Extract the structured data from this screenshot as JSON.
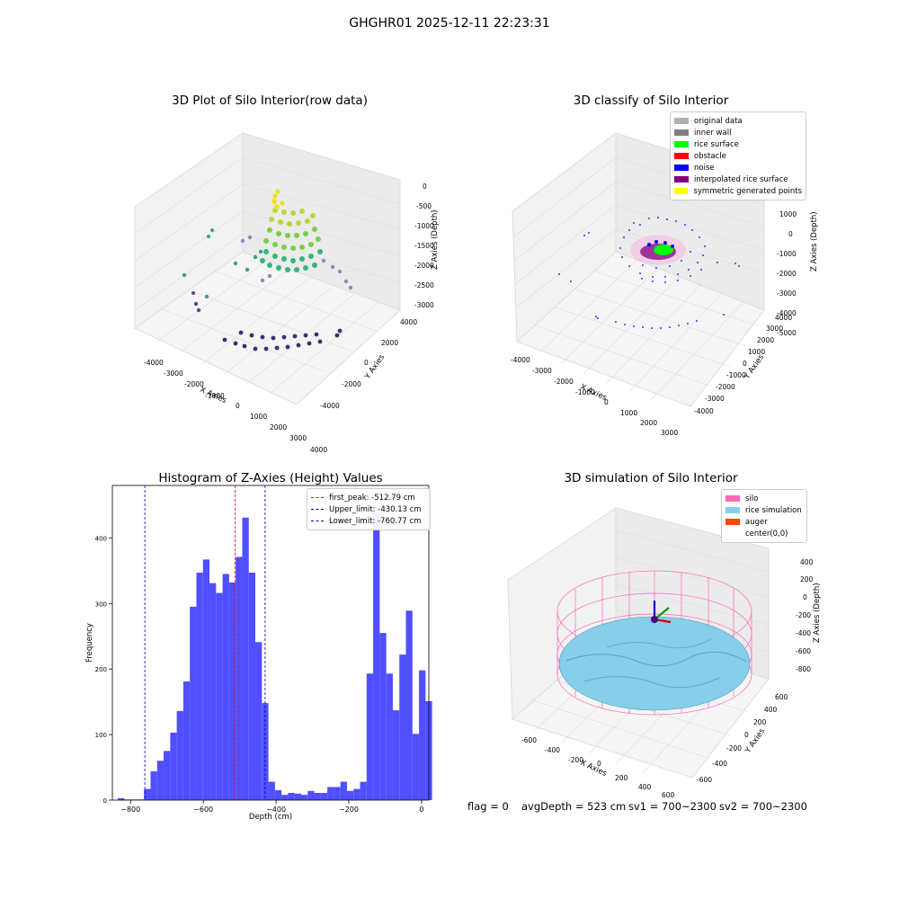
{
  "suptitle": "GHGHR01 2025-12-11 22:23:31",
  "panels": {
    "raw": {
      "title": "3D Plot of Silo Interior(row data)",
      "xlabel": "X Axies",
      "ylabel": "Y Axies",
      "zlabel": "Z Axies (Depth)",
      "xticks": [
        "-4000",
        "-3000",
        "-2000",
        "-1000",
        "0",
        "1000",
        "2000",
        "3000",
        "4000"
      ],
      "yticks": [
        "-4000",
        "-2000",
        "0",
        "2000",
        "4000"
      ],
      "zticks": [
        "0",
        "-500",
        "-1000",
        "-1500",
        "-2000",
        "-2500",
        "-3000"
      ]
    },
    "classify": {
      "title": "3D classify of Silo Interior",
      "xlabel": "X Axies",
      "ylabel": "Y Axies",
      "zlabel": "Z Axies (Depth)",
      "xticks": [
        "-4000",
        "-3000",
        "-2000",
        "-1000",
        "0",
        "1000",
        "2000",
        "3000"
      ],
      "yticks": [
        "-4000",
        "-3000",
        "-2000",
        "-1000",
        "0",
        "1000",
        "2000",
        "3000",
        "4000"
      ],
      "zticks": [
        "2000",
        "1000",
        "0",
        "-1000",
        "-2000",
        "-3000",
        "-4000",
        "-5000"
      ],
      "legend": [
        {
          "label": "original data",
          "color": "#b0b0b0"
        },
        {
          "label": "inner wall",
          "color": "#808080"
        },
        {
          "label": "rice surface",
          "color": "#00ff00"
        },
        {
          "label": "obstacle",
          "color": "#ff0000"
        },
        {
          "label": "noise",
          "color": "#0000ff"
        },
        {
          "label": "interpolated rice surface",
          "color": "#800080"
        },
        {
          "label": "symmetric generated points",
          "color": "#ffff00"
        }
      ]
    },
    "simulation": {
      "title": "3D simulation of Silo Interior",
      "xlabel": "X Axies",
      "ylabel": "Y Axies",
      "zlabel": "Z Axies (Depth)",
      "xticks": [
        "-600",
        "-400",
        "-200",
        "0",
        "200",
        "400",
        "600"
      ],
      "yticks": [
        "-600",
        "-400",
        "-200",
        "0",
        "200",
        "400",
        "600"
      ],
      "zticks": [
        "400",
        "200",
        "0",
        "-200",
        "-400",
        "-600",
        "-800"
      ],
      "legend": [
        {
          "label": "silo",
          "color": "#ff69b4"
        },
        {
          "label": "rice simulation",
          "color": "#87ceeb"
        },
        {
          "label": "auger",
          "color": "#ff4500"
        },
        {
          "label": "center(0,0)",
          "color": "#ffffff"
        }
      ]
    }
  },
  "footer": {
    "flag": "flag = 0",
    "avg": "avgDepth = 523 cm",
    "sv1": "sv1 = 700~2300",
    "sv2": "sv2 = 700~2300"
  },
  "colors": {
    "bars": "#4f4fff",
    "first_peak": "#ff0000",
    "limits": "#0000aa"
  },
  "chart_data": {
    "type": "bar",
    "title": "Histogram of Z-Axies (Height) Values",
    "xlabel": "Depth (cm)",
    "ylabel": "Frequency",
    "xlim": [
      -850,
      20
    ],
    "ylim": [
      0,
      480
    ],
    "xticks": [
      -800,
      -600,
      -400,
      -200,
      0
    ],
    "yticks": [
      0,
      100,
      200,
      300,
      400
    ],
    "bin_width": 18,
    "bins": [
      {
        "x": -826,
        "v": 3
      },
      {
        "x": -808,
        "v": 1
      },
      {
        "x": -790,
        "v": 1
      },
      {
        "x": -772,
        "v": 1
      },
      {
        "x": -754,
        "v": 17
      },
      {
        "x": -736,
        "v": 44
      },
      {
        "x": -718,
        "v": 60
      },
      {
        "x": -700,
        "v": 75
      },
      {
        "x": -682,
        "v": 103
      },
      {
        "x": -664,
        "v": 136
      },
      {
        "x": -646,
        "v": 181
      },
      {
        "x": -628,
        "v": 295
      },
      {
        "x": -610,
        "v": 347
      },
      {
        "x": -592,
        "v": 367
      },
      {
        "x": -574,
        "v": 331
      },
      {
        "x": -556,
        "v": 316
      },
      {
        "x": -538,
        "v": 345
      },
      {
        "x": -520,
        "v": 332
      },
      {
        "x": -502,
        "v": 371
      },
      {
        "x": -484,
        "v": 431
      },
      {
        "x": -466,
        "v": 347
      },
      {
        "x": -448,
        "v": 241
      },
      {
        "x": -430,
        "v": 148
      },
      {
        "x": -412,
        "v": 28
      },
      {
        "x": -394,
        "v": 15
      },
      {
        "x": -376,
        "v": 8
      },
      {
        "x": -358,
        "v": 11
      },
      {
        "x": -340,
        "v": 10
      },
      {
        "x": -322,
        "v": 8
      },
      {
        "x": -304,
        "v": 14
      },
      {
        "x": -286,
        "v": 11
      },
      {
        "x": -268,
        "v": 11
      },
      {
        "x": -250,
        "v": 20
      },
      {
        "x": -232,
        "v": 20
      },
      {
        "x": -214,
        "v": 28
      },
      {
        "x": -196,
        "v": 14
      },
      {
        "x": -178,
        "v": 17
      },
      {
        "x": -160,
        "v": 28
      },
      {
        "x": -142,
        "v": 193
      },
      {
        "x": -124,
        "v": 438
      },
      {
        "x": -106,
        "v": 255
      },
      {
        "x": -88,
        "v": 193
      },
      {
        "x": -70,
        "v": 137
      },
      {
        "x": -52,
        "v": 222
      },
      {
        "x": -34,
        "v": 289
      },
      {
        "x": -16,
        "v": 101
      },
      {
        "x": 2,
        "v": 198
      },
      {
        "x": 20,
        "v": 151
      }
    ],
    "vlines": [
      {
        "name": "first_peak",
        "x": -512.79,
        "color": "#ff0000",
        "label": "first_peak: -512.79 cm"
      },
      {
        "name": "upper_limit",
        "x": -430.13,
        "color": "#0000aa",
        "label": "Upper_limit: -430.13 cm"
      },
      {
        "name": "lower_limit",
        "x": -760.77,
        "color": "#0000aa",
        "label": "Lower_limit: -760.77 cm"
      }
    ]
  }
}
